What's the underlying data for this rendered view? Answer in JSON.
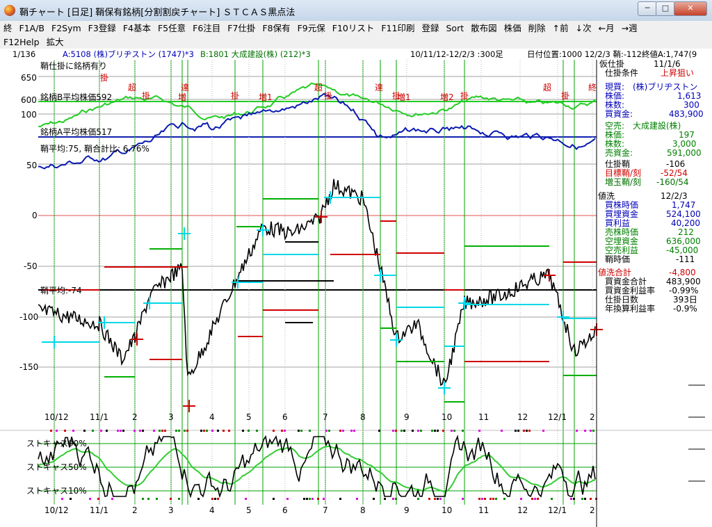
{
  "window": {
    "title": "鞘チャート [日足] 鞘保有銘柄[分割割戻チャート] ＳＴＣＡＳ黒点法",
    "min_label": "─",
    "max_label": "□",
    "close_label": "✕",
    "app_icon": "stcas-app-icon"
  },
  "menu": {
    "row1": [
      "終",
      "F1A/B",
      "F2Sym",
      "F3登録",
      "F4基本",
      "F5任意",
      "F6注目",
      "F7仕掛",
      "F8保有",
      "F9元保",
      "F10リスト",
      "F11印刷",
      "登録",
      "Sort",
      "散布図",
      "株価",
      "削除",
      "↑前",
      "↓次",
      "←月",
      "→週"
    ],
    "row2": [
      "F12Help",
      "拡大"
    ]
  },
  "info": {
    "index": "1/136",
    "stock_a": "A:5108 (株)ブリヂストン (1747)*3",
    "stock_b": "B:1801 大成建設(株) (212)*3",
    "range": "10/11/12-12/2/3 :300足",
    "position": "日付位置:1000 12/2/3 鞘:-112終値A:1,747(9"
  },
  "chart_labels": {
    "sayashikake": "鞘仕掛に銘柄有り",
    "avg_b": "銘柄B平均株価592",
    "avg_a": "銘柄A平均株価517",
    "avg_spread": "鞘平均:75, 鞘合計比: 6.76%",
    "spread_avg_line": "鞘平均:-74",
    "stoch_labels": [
      "ストキャス90%",
      "ストキャス50%",
      "ストキャス10%"
    ]
  },
  "axis": {
    "price_ticks": [
      "650",
      "600",
      "100",
      "50"
    ],
    "spread_ticks": [
      "0",
      "-50",
      "-100",
      "-150"
    ],
    "date_ticks": [
      "10/12",
      "11/1",
      "2",
      "3",
      "4",
      "5",
      "6",
      "7",
      "8",
      "9",
      "10",
      "11",
      "12",
      "12/1",
      "2"
    ]
  },
  "signals": [
    "掛",
    "超",
    "掛",
    "達",
    "増",
    "掛",
    "増1",
    "超",
    "掛",
    "達",
    "掛",
    "増1",
    "増2",
    "掛",
    "超",
    "掛",
    "終"
  ],
  "panel": {
    "kari_label": "仮仕掛",
    "kari_date": "11/1/6",
    "cond_label": "仕掛条件",
    "cond_value": "上昇狙い",
    "genkai_label": "現買:",
    "genkai_value": "(株)ブリヂストン",
    "kabuka_label": "株価:",
    "kabuka_value": "1,613",
    "kabusu_label": "株数:",
    "kabusu_value": "300",
    "kaikin_label": "買資金:",
    "kaikin_value": "483,900",
    "kara_label": "空売:",
    "kara_value": "大成建設(株)",
    "kabuka2_label": "株価:",
    "kabuka2_value": "197",
    "kabusu2_label": "株数:",
    "kabusu2_value": "3,000",
    "urikin_label": "売資金:",
    "urikin_value": "591,000",
    "shikakesaya_label": "仕掛鞘",
    "shikakesaya_value": "-106",
    "mokuhyo_label": "目標鞘/刻",
    "mokuhyo_value": "-52/54",
    "zoukyoku_label": "増玉鞘/刻",
    "zoukyoku_value": "-160/54",
    "neara_label": "値洗",
    "neara_date": "12/2/3",
    "kaikabu_label": "買株時価",
    "kaikabu_value": "1,747",
    "kaishi_label": "買埋資金",
    "kaishi_value": "524,100",
    "kairieki_label": "買利益",
    "kairieki_value": "40,200",
    "urikabu_label": "売株時価",
    "urikabu_value": "212",
    "karashi_label": "空埋資金",
    "karashi_value": "636,000",
    "karari_label": "空売利益",
    "karari_value": "-45,000",
    "sayajika_label": "鞘時価",
    "sayajika_value": "-111",
    "nearagoukei_label": "値洗合計",
    "nearagoukei_value": "-4,800",
    "kaikingoukei_label": "買資金合計",
    "kaikingoukei_value": "483,900",
    "rieki_label": "買資金利益率",
    "rieki_value": "-0.99%",
    "nissu_label": "仕掛日数",
    "nissu_value": "393日",
    "nenkan_label": "年換算利益率",
    "nenkan_value": "-0.9%"
  },
  "colors": {
    "price_b": "#22cc22",
    "price_a": "#0a1ab0",
    "spread": "#000000",
    "grid_green": "#00a000",
    "red_line": "#d00000",
    "cyan": "#00d8e8",
    "stoch_fast": "#000000",
    "stoch_slow": "#33cc33"
  }
}
